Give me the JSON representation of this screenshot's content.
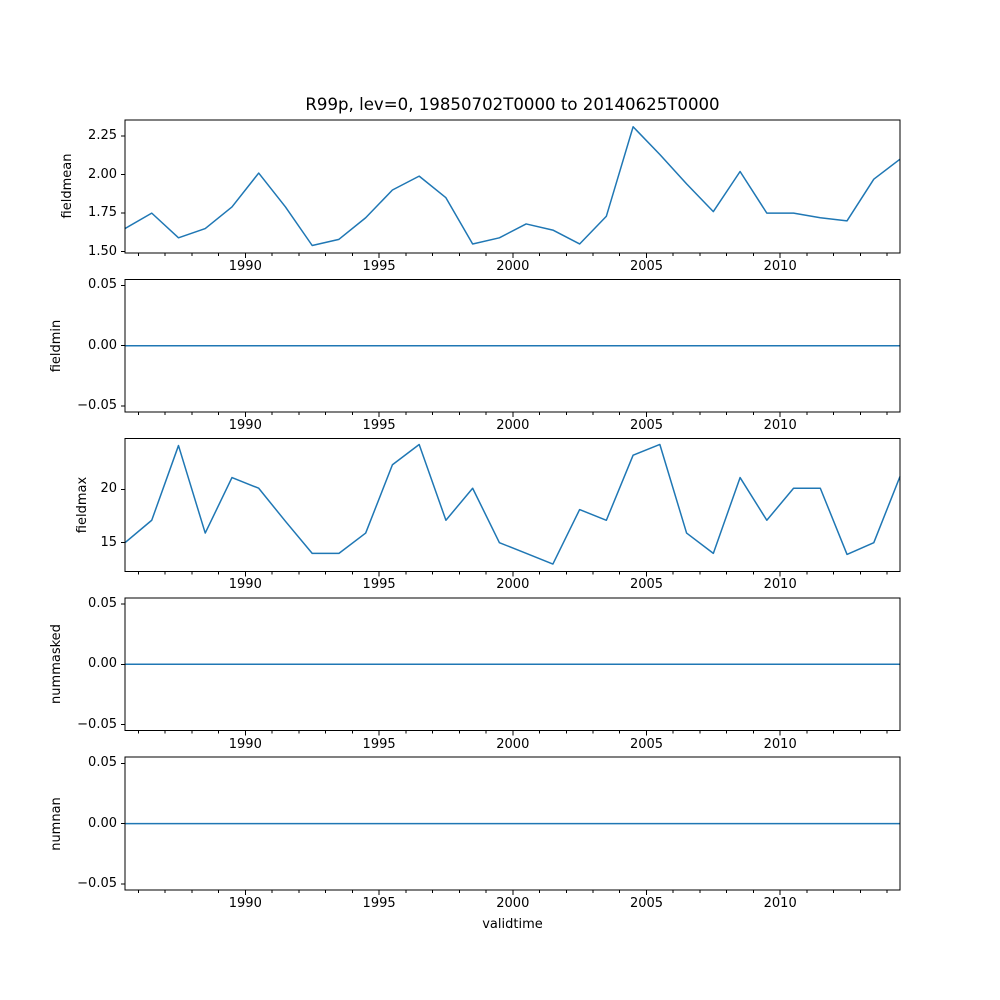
{
  "figure": {
    "background": "#ffffff"
  },
  "chart_data": {
    "type": "line",
    "title": "R99p, lev=0, 19850702T0000 to 20140625T0000",
    "xlabel": "validtime",
    "line_color": "#1f77b4",
    "axis_color": "#000000",
    "grid": false,
    "legend": "none",
    "xlim": [
      1985.5,
      2014.48
    ],
    "xticks": [
      1990,
      1995,
      2000,
      2005,
      2010
    ],
    "xtick_labels": [
      "1990",
      "1995",
      "2000",
      "2005",
      "2010"
    ],
    "xminor_tick_start_year": 1986,
    "xminor_tick_end_year": 2014,
    "x_years": [
      1985.5,
      1986.5,
      1987.5,
      1988.5,
      1989.5,
      1990.5,
      1991.5,
      1992.5,
      1993.5,
      1994.5,
      1995.5,
      1996.5,
      1997.5,
      1998.5,
      1999.5,
      2000.5,
      2001.5,
      2002.5,
      2003.5,
      2004.5,
      2005.5,
      2006.5,
      2007.5,
      2008.5,
      2009.5,
      2010.5,
      2011.5,
      2012.5,
      2013.5,
      2014.48
    ],
    "subplots": [
      {
        "ylabel": "fieldmean",
        "ylim": [
          1.493,
          2.354
        ],
        "yticks": [
          2.25,
          2.0,
          1.75,
          1.5
        ],
        "ytick_labels": [
          "2.25",
          "2.00",
          "1.75",
          "1.50"
        ],
        "values": [
          1.65,
          1.75,
          1.59,
          1.65,
          1.79,
          2.01,
          1.79,
          1.54,
          1.58,
          1.72,
          1.9,
          1.99,
          1.85,
          1.55,
          1.59,
          1.68,
          1.64,
          1.55,
          1.73,
          2.31,
          2.13,
          1.94,
          1.76,
          2.02,
          1.75,
          1.75,
          1.72,
          1.7,
          1.97,
          2.1
        ]
      },
      {
        "ylabel": "fieldmin",
        "ylim": [
          -0.055,
          0.055
        ],
        "yticks": [
          0.05,
          0.0,
          -0.05
        ],
        "ytick_labels": [
          "0.05",
          "0.00",
          "−0.05"
        ],
        "values": [
          0,
          0,
          0,
          0,
          0,
          0,
          0,
          0,
          0,
          0,
          0,
          0,
          0,
          0,
          0,
          0,
          0,
          0,
          0,
          0,
          0,
          0,
          0,
          0,
          0,
          0,
          0,
          0,
          0,
          0
        ]
      },
      {
        "ylabel": "fieldmax",
        "ylim": [
          12.31,
          24.75
        ],
        "yticks": [
          20,
          15
        ],
        "ytick_labels": [
          "20",
          "15"
        ],
        "values": [
          15.0,
          17.1,
          24.1,
          15.9,
          21.1,
          20.1,
          17.0,
          14.0,
          14.0,
          15.9,
          22.3,
          24.2,
          17.1,
          20.1,
          15.0,
          14.0,
          13.0,
          18.1,
          17.1,
          23.2,
          24.2,
          15.9,
          14.0,
          21.1,
          17.1,
          20.1,
          20.1,
          13.9,
          15.0,
          21.2
        ]
      },
      {
        "ylabel": "nummasked",
        "ylim": [
          -0.055,
          0.055
        ],
        "yticks": [
          0.05,
          0.0,
          -0.05
        ],
        "ytick_labels": [
          "0.05",
          "0.00",
          "−0.05"
        ],
        "values": [
          0,
          0,
          0,
          0,
          0,
          0,
          0,
          0,
          0,
          0,
          0,
          0,
          0,
          0,
          0,
          0,
          0,
          0,
          0,
          0,
          0,
          0,
          0,
          0,
          0,
          0,
          0,
          0,
          0,
          0
        ]
      },
      {
        "ylabel": "numnan",
        "ylim": [
          -0.055,
          0.055
        ],
        "yticks": [
          0.05,
          0.0,
          -0.05
        ],
        "ytick_labels": [
          "0.05",
          "0.00",
          "−0.05"
        ],
        "values": [
          0,
          0,
          0,
          0,
          0,
          0,
          0,
          0,
          0,
          0,
          0,
          0,
          0,
          0,
          0,
          0,
          0,
          0,
          0,
          0,
          0,
          0,
          0,
          0,
          0,
          0,
          0,
          0,
          0,
          0
        ]
      }
    ]
  }
}
